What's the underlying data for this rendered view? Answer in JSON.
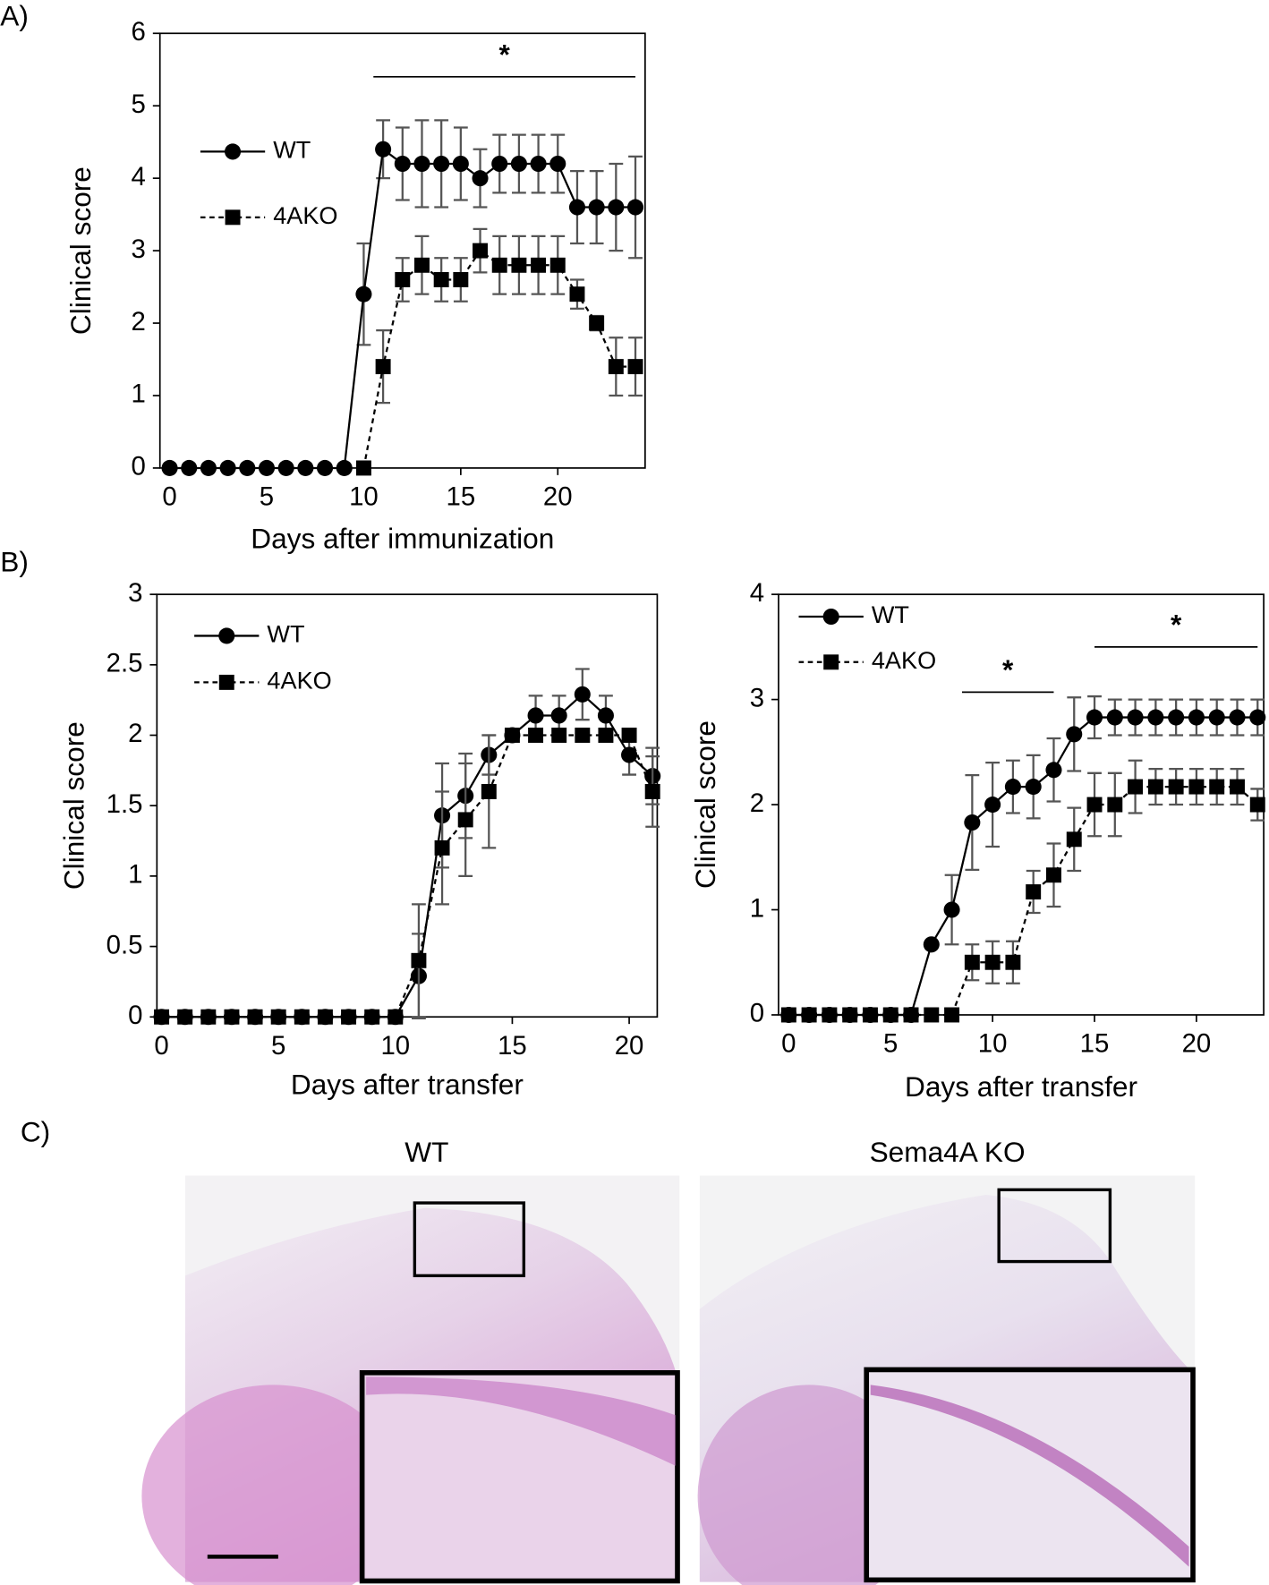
{
  "panel_labels": [
    "A)",
    "B)",
    "C)"
  ],
  "chart_data": [
    {
      "type": "line",
      "xlabel": "Days after immunization",
      "ylabel": "Clinical score",
      "x": [
        0,
        1,
        2,
        3,
        4,
        5,
        6,
        7,
        8,
        9,
        10,
        11,
        12,
        13,
        14,
        15,
        16,
        17,
        18,
        19,
        20,
        21,
        22,
        23,
        24
      ],
      "xlim": [
        -0.5,
        24.5
      ],
      "ylim": [
        0,
        6
      ],
      "xticks": [
        0,
        5,
        10,
        15,
        20
      ],
      "yticks": [
        0,
        1,
        2,
        3,
        4,
        5,
        6
      ],
      "legend": "upper left",
      "series": [
        {
          "name": "WT",
          "color": "#000000",
          "marker": "circle",
          "line": "solid",
          "values": [
            0,
            0,
            0,
            0,
            0,
            0,
            0,
            0,
            0,
            0,
            2.4,
            4.4,
            4.2,
            4.2,
            4.2,
            4.2,
            4.0,
            4.2,
            4.2,
            4.2,
            4.2,
            3.6,
            3.6,
            3.6,
            3.6
          ],
          "errors": [
            null,
            null,
            null,
            null,
            null,
            null,
            null,
            null,
            null,
            null,
            0.7,
            0.4,
            0.5,
            0.6,
            0.6,
            0.5,
            0.4,
            0.4,
            0.4,
            0.4,
            0.4,
            0.5,
            0.5,
            0.6,
            0.7
          ]
        },
        {
          "name": "4AKO",
          "color": "#000000",
          "marker": "square",
          "line": "dashed",
          "values": [
            null,
            null,
            null,
            null,
            null,
            null,
            null,
            null,
            null,
            null,
            0,
            1.4,
            2.6,
            2.8,
            2.6,
            2.6,
            3.0,
            2.8,
            2.8,
            2.8,
            2.8,
            2.4,
            2.0,
            1.4,
            1.4
          ],
          "errors": [
            null,
            null,
            null,
            null,
            null,
            null,
            null,
            null,
            null,
            null,
            null,
            0.5,
            0.3,
            0.4,
            0.3,
            0.3,
            0.3,
            0.4,
            0.4,
            0.4,
            0.4,
            0.2,
            0.1,
            0.4,
            0.4
          ]
        }
      ],
      "significance": [
        {
          "label": "*",
          "from": 10.5,
          "to": 24,
          "y": 5.4
        }
      ]
    },
    {
      "type": "line",
      "xlabel": "Days after transfer",
      "ylabel": "Clinical score",
      "x": [
        0,
        1,
        2,
        3,
        4,
        5,
        6,
        7,
        8,
        9,
        10,
        11,
        12,
        13,
        14,
        15,
        16,
        17,
        18,
        19,
        20,
        21
      ],
      "xlim": [
        -0.2,
        21.2
      ],
      "ylim": [
        0,
        3
      ],
      "xticks": [
        0,
        5,
        10,
        15,
        20
      ],
      "yticks": [
        0,
        0.5,
        1,
        1.5,
        2,
        2.5,
        3
      ],
      "legend": "upper left",
      "series": [
        {
          "name": "WT",
          "color": "#000000",
          "marker": "circle",
          "line": "solid",
          "values": [
            0,
            0,
            0,
            0,
            0,
            0,
            0,
            0,
            0,
            0,
            0,
            0.29,
            1.43,
            1.57,
            1.86,
            2.0,
            2.14,
            2.14,
            2.29,
            2.14,
            1.86,
            1.71
          ],
          "errors": [
            null,
            null,
            null,
            null,
            null,
            null,
            null,
            null,
            null,
            null,
            null,
            0.3,
            0.37,
            0.3,
            0.14,
            null,
            0.14,
            0.14,
            0.18,
            0.14,
            0.14,
            0.2
          ]
        },
        {
          "name": "4AKO",
          "color": "#000000",
          "marker": "square",
          "line": "dashed",
          "values": [
            0,
            0,
            0,
            0,
            0,
            0,
            0,
            0,
            0,
            0,
            0,
            0.4,
            1.2,
            1.4,
            1.6,
            2.0,
            2.0,
            2.0,
            2.0,
            2.0,
            2.0,
            1.6
          ],
          "errors": [
            null,
            null,
            null,
            null,
            null,
            null,
            null,
            null,
            null,
            null,
            null,
            0.4,
            0.4,
            0.4,
            0.4,
            null,
            null,
            null,
            null,
            null,
            null,
            0.25
          ]
        }
      ],
      "significance": []
    },
    {
      "type": "line",
      "xlabel": "Days after transfer",
      "ylabel": "Clinical score",
      "x": [
        0,
        1,
        2,
        3,
        4,
        5,
        6,
        7,
        8,
        9,
        10,
        11,
        12,
        13,
        14,
        15,
        16,
        17,
        18,
        19,
        20,
        21,
        22,
        23
      ],
      "xlim": [
        -0.5,
        23.3
      ],
      "ylim": [
        0,
        4
      ],
      "xticks": [
        0,
        5,
        10,
        15,
        20
      ],
      "yticks": [
        0,
        1,
        2,
        3,
        4
      ],
      "legend": "upper left",
      "series": [
        {
          "name": "WT",
          "color": "#000000",
          "marker": "circle",
          "line": "solid",
          "values": [
            0,
            0,
            0,
            0,
            0,
            0,
            0,
            0.67,
            1.0,
            1.83,
            2.0,
            2.17,
            2.17,
            2.33,
            2.67,
            2.83,
            2.83,
            2.83,
            2.83,
            2.83,
            2.83,
            2.83,
            2.83,
            2.83
          ],
          "errors": [
            null,
            null,
            null,
            null,
            null,
            null,
            null,
            null,
            0.33,
            0.45,
            0.4,
            0.25,
            0.3,
            0.3,
            0.35,
            0.2,
            0.17,
            0.17,
            0.17,
            0.17,
            0.17,
            0.17,
            0.17,
            0.17
          ]
        },
        {
          "name": "4AKO",
          "color": "#000000",
          "marker": "square",
          "line": "dashed",
          "values": [
            0,
            0,
            0,
            0,
            0,
            0,
            0,
            0,
            0,
            0.5,
            0.5,
            0.5,
            1.17,
            1.33,
            1.67,
            2.0,
            2.0,
            2.17,
            2.17,
            2.17,
            2.17,
            2.17,
            2.17,
            2.0
          ],
          "errors": [
            null,
            null,
            null,
            null,
            null,
            null,
            null,
            null,
            null,
            0.17,
            0.2,
            0.2,
            0.2,
            0.3,
            0.3,
            0.3,
            0.3,
            0.25,
            0.17,
            0.17,
            0.17,
            0.17,
            0.17,
            0.15
          ]
        }
      ],
      "significance": [
        {
          "label": "*",
          "from": 8.5,
          "to": 13,
          "y": 3.07
        },
        {
          "label": "*",
          "from": 15,
          "to": 23,
          "y": 3.5
        }
      ]
    }
  ],
  "histology": {
    "labels": [
      "WT",
      "Sema4A KO"
    ]
  }
}
